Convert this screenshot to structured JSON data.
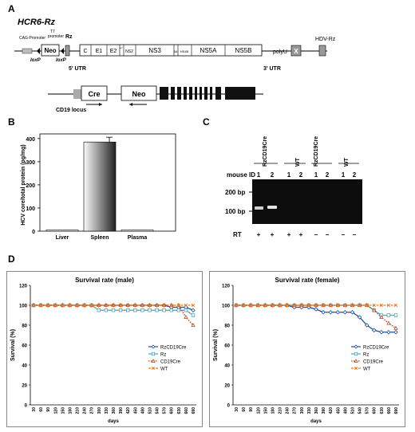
{
  "panels": {
    "a": "A",
    "b": "B",
    "c": "C",
    "d": "D"
  },
  "construct": {
    "title": "HCR6-Rz",
    "cag_promoter": "CAG-Promoter",
    "t7_promoter_1": "T7",
    "t7_promoter_2": "promoter",
    "rz": "Rz",
    "neo": "Neo",
    "loxp_left": "loxP",
    "loxp_right": "loxP",
    "utr5": "5' UTR",
    "utr3": "3' UTR",
    "segments": [
      "C",
      "E1",
      "E2",
      "p7",
      "NS2",
      "NS3",
      "4A",
      "NS4B",
      "NS5A",
      "NS5B"
    ],
    "poly_u": "polyU",
    "hdv_rz": "HDV-Rz",
    "x": "X"
  },
  "locus": {
    "cre": "Cre",
    "neo": "Neo",
    "label": "CD19 locus"
  },
  "chart_b": {
    "ylabel": "HCV core/total protein (pg/mg)",
    "yticks": [
      "0",
      "100",
      "200",
      "300",
      "400"
    ]
  },
  "gel": {
    "group_labels": [
      "RzCD19Cre",
      "WT",
      "RzCD19Cre",
      "WT"
    ],
    "mouse_id_label": "mouse ID",
    "lane_ids": [
      "1",
      "2",
      "1",
      "2",
      "1",
      "2",
      "1",
      "2"
    ],
    "marker_200": "200 bp",
    "marker_100": "100 bp",
    "rt_label": "RT",
    "rt_values": [
      "+",
      "+",
      "+",
      "+",
      "–",
      "–",
      "–",
      "–"
    ]
  },
  "chart_data": [
    {
      "type": "bar",
      "categories": [
        "Liver",
        "Spleen",
        "Plasma"
      ],
      "values": [
        2,
        385,
        0
      ],
      "ylim": [
        0,
        420
      ],
      "ylabel": "HCV core/total protein (pg/mg)"
    },
    {
      "type": "line",
      "title": "Survival rate (male)",
      "xlabel": "days",
      "ylabel": "Survival (%)",
      "ylim": [
        0,
        120
      ],
      "yticks": [
        0,
        20,
        40,
        60,
        80,
        100,
        120
      ],
      "x": [
        30,
        60,
        90,
        120,
        150,
        180,
        210,
        240,
        270,
        300,
        330,
        360,
        390,
        420,
        450,
        480,
        510,
        540,
        570,
        600,
        630,
        660,
        690
      ],
      "series": [
        {
          "name": "RzCD19Cre",
          "color": "#1f4e9c",
          "marker": "diamond",
          "values": [
            100,
            100,
            100,
            100,
            100,
            100,
            100,
            100,
            100,
            100,
            100,
            100,
            100,
            100,
            100,
            100,
            100,
            100,
            100,
            98,
            98,
            98,
            95
          ]
        },
        {
          "name": "Rz",
          "color": "#4aa3c8",
          "marker": "square",
          "values": [
            100,
            100,
            100,
            100,
            100,
            100,
            100,
            100,
            100,
            95,
            95,
            95,
            95,
            95,
            95,
            95,
            95,
            95,
            95,
            95,
            95,
            95,
            90
          ]
        },
        {
          "name": "CD19Cre",
          "color": "#b5461f",
          "marker": "triangle",
          "values": [
            100,
            100,
            100,
            100,
            100,
            100,
            100,
            100,
            100,
            100,
            100,
            100,
            100,
            100,
            100,
            100,
            100,
            100,
            100,
            100,
            100,
            88,
            80
          ]
        },
        {
          "name": "WT",
          "color": "#f07a1a",
          "marker": "x",
          "values": [
            100,
            100,
            100,
            100,
            100,
            100,
            100,
            100,
            100,
            100,
            100,
            100,
            100,
            100,
            100,
            100,
            100,
            100,
            100,
            100,
            100,
            100,
            100
          ]
        }
      ],
      "legend": "right"
    },
    {
      "type": "line",
      "title": "Survival rate (female)",
      "xlabel": "days",
      "ylabel": "Survival (%)",
      "ylim": [
        0,
        120
      ],
      "yticks": [
        0,
        20,
        40,
        60,
        80,
        100,
        120
      ],
      "x": [
        30,
        60,
        90,
        120,
        150,
        180,
        210,
        240,
        270,
        300,
        330,
        360,
        390,
        420,
        450,
        480,
        510,
        540,
        570,
        600,
        630,
        660,
        690
      ],
      "series": [
        {
          "name": "RzCD19Cre",
          "color": "#1f4e9c",
          "marker": "diamond",
          "values": [
            100,
            100,
            100,
            100,
            100,
            100,
            100,
            100,
            98,
            98,
            98,
            96,
            93,
            93,
            93,
            93,
            93,
            88,
            80,
            75,
            73,
            73,
            73
          ]
        },
        {
          "name": "Rz",
          "color": "#4aa3c8",
          "marker": "square",
          "values": [
            100,
            100,
            100,
            100,
            100,
            100,
            100,
            100,
            100,
            100,
            100,
            100,
            100,
            100,
            100,
            100,
            100,
            100,
            100,
            95,
            90,
            90,
            90
          ]
        },
        {
          "name": "CD19Cre",
          "color": "#b5461f",
          "marker": "triangle",
          "values": [
            100,
            100,
            100,
            100,
            100,
            100,
            100,
            100,
            100,
            100,
            100,
            100,
            100,
            100,
            100,
            100,
            100,
            100,
            100,
            95,
            88,
            82,
            77
          ]
        },
        {
          "name": "WT",
          "color": "#f07a1a",
          "marker": "x",
          "values": [
            100,
            100,
            100,
            100,
            100,
            100,
            100,
            100,
            100,
            100,
            100,
            100,
            100,
            100,
            100,
            100,
            100,
            100,
            100,
            100,
            100,
            100,
            100
          ]
        }
      ],
      "legend": "right"
    }
  ]
}
